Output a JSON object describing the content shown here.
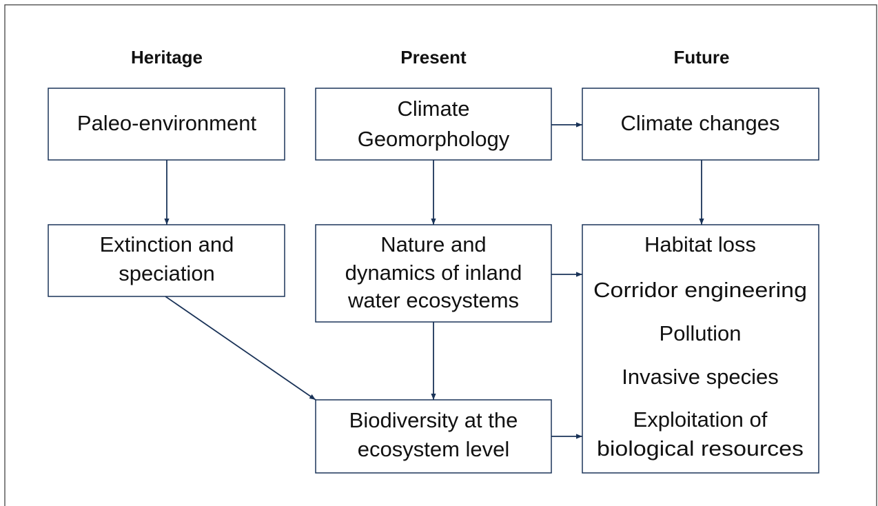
{
  "headers": [
    "Heritage",
    "Present",
    "Future"
  ],
  "nodes": [
    {
      "lines": [
        "Paleo-environment"
      ]
    },
    {
      "lines": [
        "Climate",
        "Geomorphology"
      ]
    },
    {
      "lines": [
        "Climate changes"
      ]
    },
    {
      "lines": [
        "Extinction and",
        "speciation"
      ]
    },
    {
      "lines": [
        "Nature and",
        "dynamics of inland",
        "water ecosystems"
      ]
    },
    {
      "lines": [
        "Habitat loss",
        "Corridor engineering",
        "Pollution",
        "Invasive species",
        "Exploitation of",
        "biological resources"
      ]
    },
    {
      "lines": [
        "Biodiversity at the",
        "ecosystem level"
      ]
    }
  ]
}
